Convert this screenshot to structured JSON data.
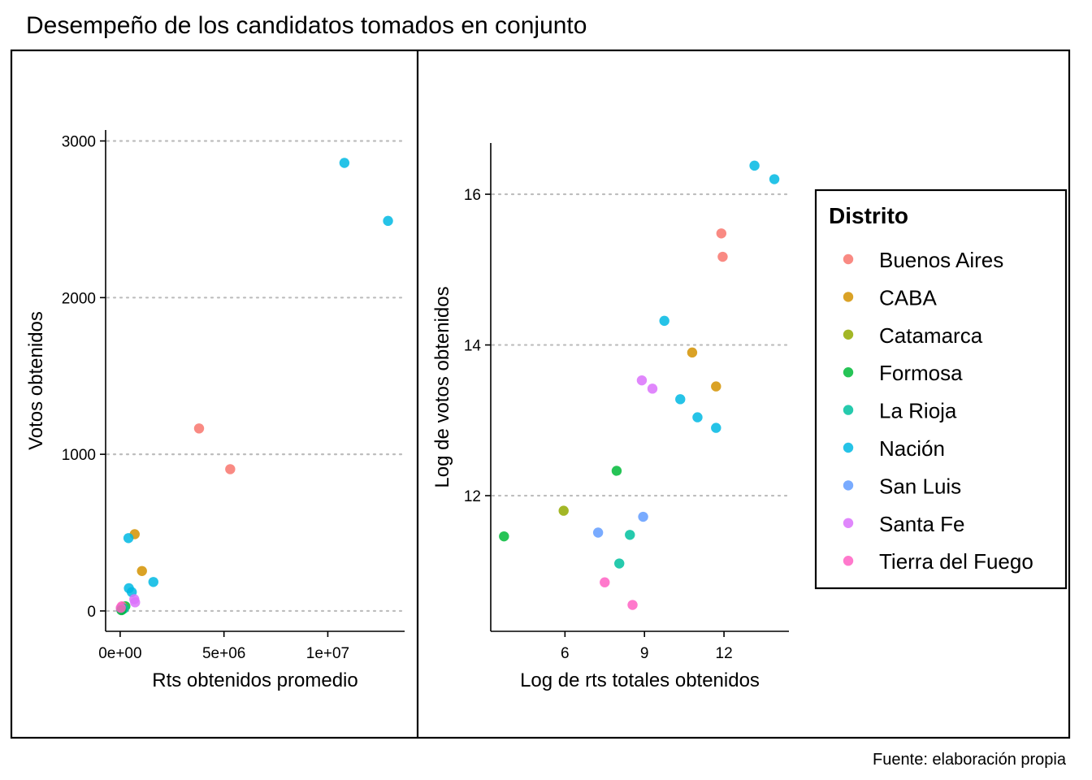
{
  "title": "Desempeño de los candidatos tomados en conjunto",
  "caption": "Fuente: elaboración propia",
  "legend": {
    "title": "Distrito",
    "position": "right",
    "items": [
      {
        "label": "Buenos Aires",
        "color": "#F8766D"
      },
      {
        "label": "CABA",
        "color": "#D39200"
      },
      {
        "label": "Catamarca",
        "color": "#93AA00"
      },
      {
        "label": "Formosa",
        "color": "#00BA38"
      },
      {
        "label": "La Rioja",
        "color": "#00C19F"
      },
      {
        "label": "Nación",
        "color": "#00B9E3"
      },
      {
        "label": "San Luis",
        "color": "#619CFF"
      },
      {
        "label": "Santa Fe",
        "color": "#DB72FB"
      },
      {
        "label": "Tierra del Fuego",
        "color": "#FF61C3"
      }
    ]
  },
  "chart_data": [
    {
      "type": "scatter",
      "xlabel": "Rts obtenidos promedio",
      "ylabel": "Votos obtenidos",
      "xlim": [
        -700000,
        13700000
      ],
      "ylim": [
        -130,
        3070
      ],
      "xticks": [
        {
          "value": 0,
          "label": "0e+00"
        },
        {
          "value": 5000000,
          "label": "5e+06"
        },
        {
          "value": 10000000,
          "label": "1e+07"
        }
      ],
      "yticks": [
        {
          "value": 0,
          "label": "0"
        },
        {
          "value": 1000,
          "label": "1000"
        },
        {
          "value": 2000,
          "label": "2000"
        },
        {
          "value": 3000,
          "label": "3000"
        }
      ],
      "grid": "horizontal-dotted",
      "points": [
        {
          "x": 10800000,
          "y": 2860,
          "group": "Nación"
        },
        {
          "x": 12900000,
          "y": 2490,
          "group": "Nación"
        },
        {
          "x": 3800000,
          "y": 1165,
          "group": "Buenos Aires"
        },
        {
          "x": 5300000,
          "y": 905,
          "group": "Buenos Aires"
        },
        {
          "x": 700000,
          "y": 490,
          "group": "CABA"
        },
        {
          "x": 400000,
          "y": 465,
          "group": "Nación"
        },
        {
          "x": 1050000,
          "y": 255,
          "group": "CABA"
        },
        {
          "x": 1600000,
          "y": 185,
          "group": "Nación"
        },
        {
          "x": 420000,
          "y": 145,
          "group": "Nación"
        },
        {
          "x": 560000,
          "y": 120,
          "group": "Nación"
        },
        {
          "x": 680000,
          "y": 75,
          "group": "Santa Fe"
        },
        {
          "x": 720000,
          "y": 55,
          "group": "Santa Fe"
        },
        {
          "x": 250000,
          "y": 30,
          "group": "Formosa"
        },
        {
          "x": 150000,
          "y": 25,
          "group": "Catamarca"
        },
        {
          "x": 80000,
          "y": 30,
          "group": "Tierra del Fuego"
        },
        {
          "x": 180000,
          "y": 15,
          "group": "La Rioja"
        },
        {
          "x": 100000,
          "y": 8,
          "group": "La Rioja"
        },
        {
          "x": 40000,
          "y": 12,
          "group": "San Luis"
        },
        {
          "x": 60000,
          "y": 5,
          "group": "Formosa"
        },
        {
          "x": 30000,
          "y": 20,
          "group": "Tierra del Fuego"
        }
      ]
    },
    {
      "type": "scatter",
      "xlabel": "Log de rts totales obtenidos",
      "ylabel": "Log de votos obtenidos",
      "xlim": [
        3.2,
        14.45
      ],
      "ylim": [
        10.2,
        16.68
      ],
      "xticks": [
        {
          "value": 6,
          "label": "6"
        },
        {
          "value": 9,
          "label": "9"
        },
        {
          "value": 12,
          "label": "12"
        }
      ],
      "yticks": [
        {
          "value": 12,
          "label": "12"
        },
        {
          "value": 14,
          "label": "14"
        },
        {
          "value": 16,
          "label": "16"
        }
      ],
      "grid": "horizontal-dotted",
      "points": [
        {
          "x": 13.15,
          "y": 16.38,
          "group": "Nación"
        },
        {
          "x": 13.9,
          "y": 16.2,
          "group": "Nación"
        },
        {
          "x": 11.9,
          "y": 15.48,
          "group": "Buenos Aires"
        },
        {
          "x": 11.95,
          "y": 15.17,
          "group": "Buenos Aires"
        },
        {
          "x": 9.75,
          "y": 14.32,
          "group": "Nación"
        },
        {
          "x": 10.8,
          "y": 13.9,
          "group": "CABA"
        },
        {
          "x": 11.7,
          "y": 13.45,
          "group": "CABA"
        },
        {
          "x": 8.9,
          "y": 13.53,
          "group": "Santa Fe"
        },
        {
          "x": 9.3,
          "y": 13.42,
          "group": "Santa Fe"
        },
        {
          "x": 10.35,
          "y": 13.28,
          "group": "Nación"
        },
        {
          "x": 11.0,
          "y": 13.04,
          "group": "Nación"
        },
        {
          "x": 11.7,
          "y": 12.9,
          "group": "Nación"
        },
        {
          "x": 7.95,
          "y": 12.33,
          "group": "Formosa"
        },
        {
          "x": 5.95,
          "y": 11.8,
          "group": "Catamarca"
        },
        {
          "x": 8.95,
          "y": 11.72,
          "group": "San Luis"
        },
        {
          "x": 3.7,
          "y": 11.46,
          "group": "Formosa"
        },
        {
          "x": 7.25,
          "y": 11.51,
          "group": "San Luis"
        },
        {
          "x": 8.45,
          "y": 11.48,
          "group": "La Rioja"
        },
        {
          "x": 8.05,
          "y": 11.1,
          "group": "La Rioja"
        },
        {
          "x": 7.5,
          "y": 10.85,
          "group": "Tierra del Fuego"
        },
        {
          "x": 8.55,
          "y": 10.55,
          "group": "Tierra del Fuego"
        }
      ]
    }
  ]
}
